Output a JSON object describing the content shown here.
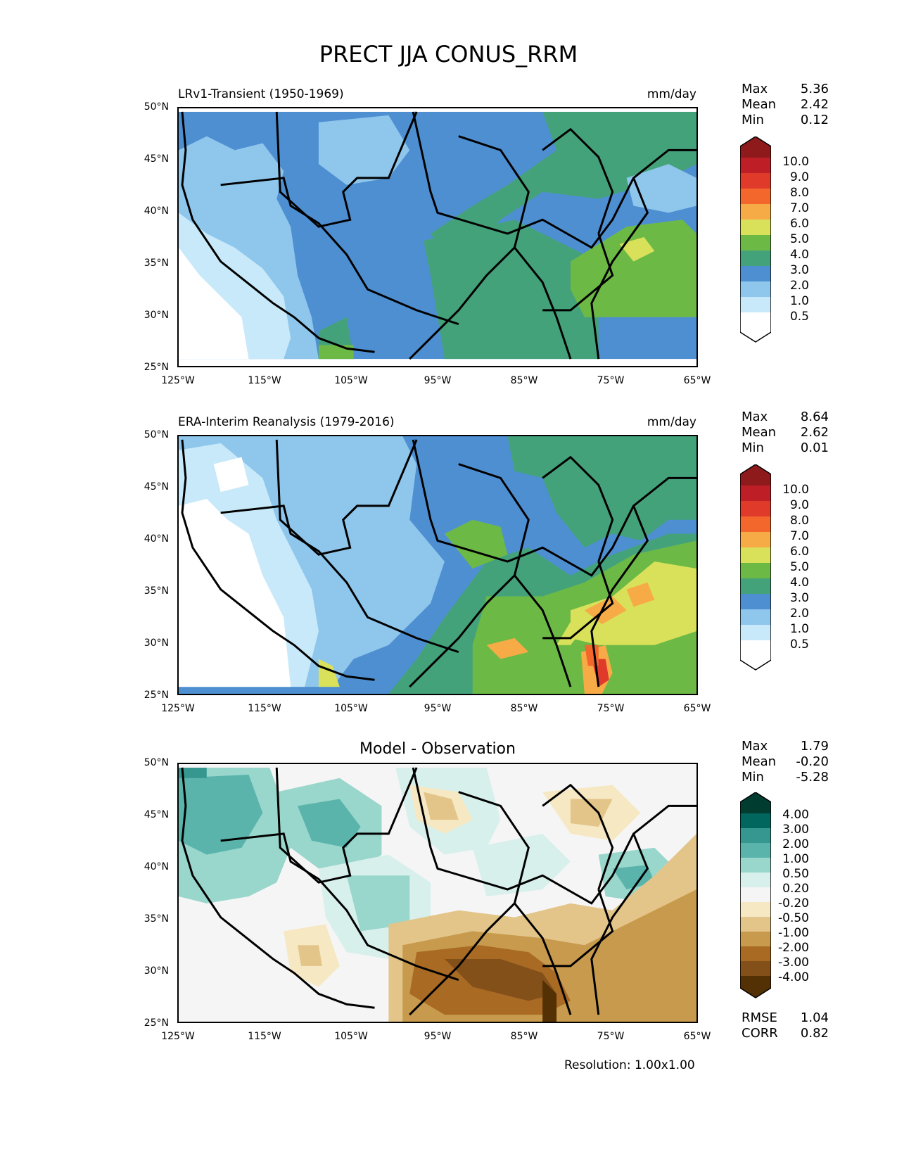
{
  "figure": {
    "title": "PRECT JJA CONUS_RRM",
    "footnote": "Resolution: 1.00x1.00"
  },
  "axes": {
    "lat_ticks": [
      "50°N",
      "45°N",
      "40°N",
      "35°N",
      "30°N",
      "25°N"
    ],
    "lon_ticks": [
      "125°W",
      "115°W",
      "105°W",
      "95°W",
      "85°W",
      "75°W",
      "65°W"
    ]
  },
  "panels": [
    {
      "title_left": "LRv1-Transient (1950-1969)",
      "title_right": "mm/day",
      "stats": [
        {
          "name": "Max",
          "value": "5.36"
        },
        {
          "name": "Mean",
          "value": "2.42"
        },
        {
          "name": "Min",
          "value": "0.12"
        }
      ],
      "colorbar": {
        "labels": [
          "10.0",
          "9.0",
          "8.0",
          "7.0",
          "6.0",
          "5.0",
          "4.0",
          "3.0",
          "2.0",
          "1.0",
          "0.5"
        ],
        "colors": [
          "#8e1a1c",
          "#be1f26",
          "#e03b2a",
          "#f3672c",
          "#f7ab46",
          "#d9e15a",
          "#6db946",
          "#44a27b",
          "#4e8fd2",
          "#8fc6ec",
          "#c8e9f9",
          "#ffffff"
        ]
      }
    },
    {
      "title_left": "ERA-Interim Reanalysis (1979-2016)",
      "title_right": "mm/day",
      "stats": [
        {
          "name": "Max",
          "value": "8.64"
        },
        {
          "name": "Mean",
          "value": "2.62"
        },
        {
          "name": "Min",
          "value": "0.01"
        }
      ],
      "colorbar": {
        "labels": [
          "10.0",
          "9.0",
          "8.0",
          "7.0",
          "6.0",
          "5.0",
          "4.0",
          "3.0",
          "2.0",
          "1.0",
          "0.5"
        ],
        "colors": [
          "#8e1a1c",
          "#be1f26",
          "#e03b2a",
          "#f3672c",
          "#f7ab46",
          "#d9e15a",
          "#6db946",
          "#44a27b",
          "#4e8fd2",
          "#8fc6ec",
          "#c8e9f9",
          "#ffffff"
        ]
      }
    },
    {
      "title_center": "Model - Observation",
      "stats": [
        {
          "name": "Max",
          "value": "1.79"
        },
        {
          "name": "Mean",
          "value": "-0.20"
        },
        {
          "name": "Min",
          "value": "-5.28"
        }
      ],
      "colorbar": {
        "labels": [
          "4.00",
          "3.00",
          "2.00",
          "1.00",
          "0.50",
          "0.20",
          "-0.20",
          "-0.50",
          "-1.00",
          "-2.00",
          "-3.00",
          "-4.00"
        ],
        "colors": [
          "#003c30",
          "#01665e",
          "#35978f",
          "#5ab4ac",
          "#99d6cc",
          "#d8f0ec",
          "#f5f5f5",
          "#f6e8c3",
          "#e3c58a",
          "#c79a4e",
          "#a96a24",
          "#83501a",
          "#543005"
        ]
      },
      "metrics": [
        {
          "name": "RMSE",
          "value": "1.04"
        },
        {
          "name": "CORR",
          "value": "0.82"
        }
      ]
    }
  ]
}
